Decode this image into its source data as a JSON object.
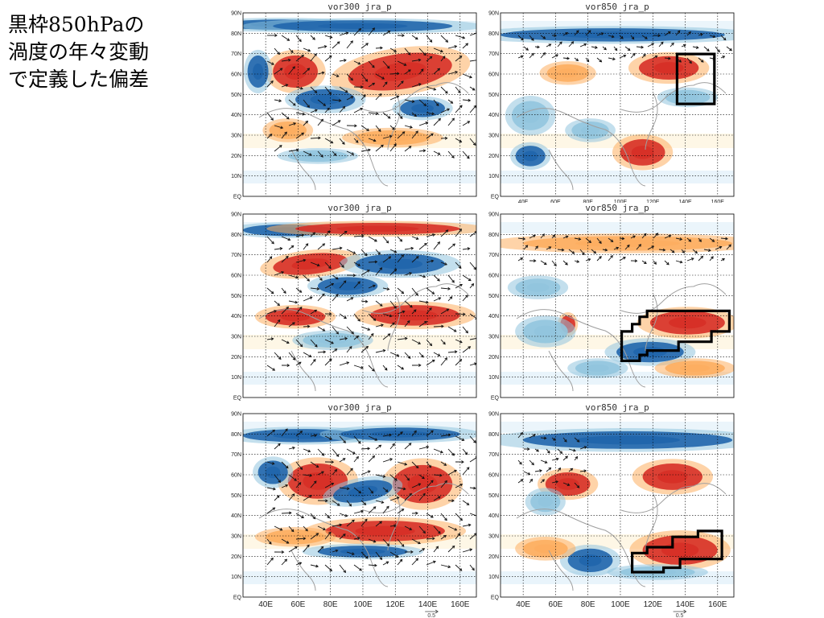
{
  "caption": "黒枠850hPaの\n渦度の年々変動\nで定義した偏差",
  "panels": [
    {
      "id": "r1-left",
      "title": "vor300 jra_p"
    },
    {
      "id": "r1-right",
      "title": "vor850 jra_p"
    },
    {
      "id": "r2-left",
      "title": "vor300 jra_p"
    },
    {
      "id": "r2-right",
      "title": "vor850 jra_p"
    },
    {
      "id": "r3-left",
      "title": "vor300 jra_p"
    },
    {
      "id": "r3-right",
      "title": "vor850 jra_p"
    }
  ],
  "lat_ticks": [
    "90N",
    "80N",
    "70N",
    "60N",
    "50N",
    "40N",
    "30N",
    "20N",
    "10N",
    "EQ"
  ],
  "lon_ticks": [
    "40E",
    "60E",
    "80E",
    "100E",
    "120E",
    "140E",
    "160E"
  ],
  "vector_scale_label": "0.5",
  "colors": {
    "positive": "#d73027",
    "positive_light": "#fdae61",
    "negative": "#2166ac",
    "negative_light": "#92c5de",
    "coast": "#a0a0a0",
    "box": "#000000"
  }
}
